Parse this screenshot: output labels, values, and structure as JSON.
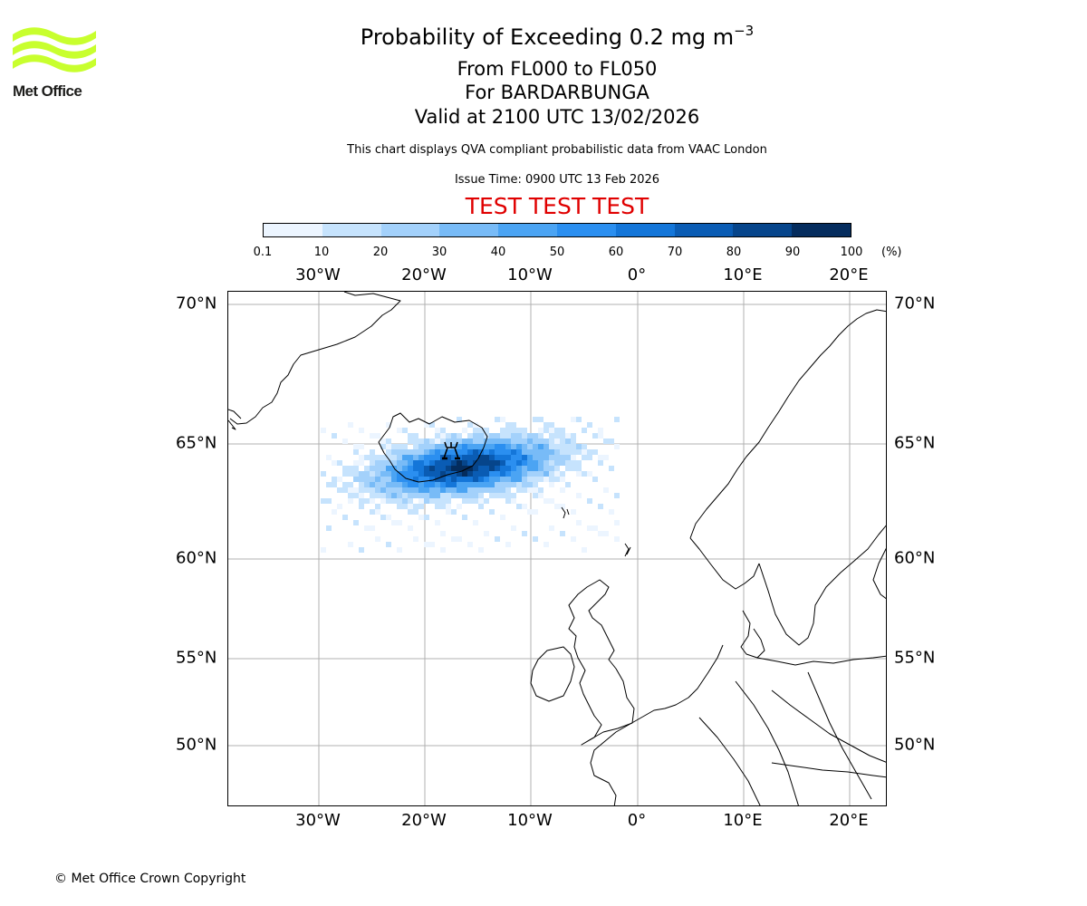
{
  "logo": {
    "text": "Met Office",
    "accent_color": "#c8ff2e"
  },
  "title": {
    "main": "Probability of Exceeding 0.2 mg m",
    "main_sup": "−3",
    "levels": "From FL000 to FL050",
    "volcano": "For BARDARBUNGA",
    "valid": "Valid at 2100 UTC 13/02/2026"
  },
  "description": "This chart displays QVA compliant probabilistic data from VAAC London",
  "issue_time": "Issue Time: 0900 UTC 13 Feb 2026",
  "test_banner": "TEST TEST TEST",
  "colorbar": {
    "ticks": [
      "0.1",
      "10",
      "20",
      "30",
      "40",
      "50",
      "60",
      "70",
      "80",
      "90",
      "100"
    ],
    "unit": "(%)",
    "colors": [
      "#ecf5ff",
      "#c6e3fd",
      "#a3d1fb",
      "#78bbf7",
      "#4ba4f3",
      "#2b8ff0",
      "#1476d9",
      "#0a5cb4",
      "#06458b",
      "#042c5d"
    ]
  },
  "axes": {
    "lon_ticks": [
      "30°W",
      "20°W",
      "10°W",
      "0°",
      "10°E",
      "20°E"
    ],
    "lat_ticks": [
      "70°N",
      "65°N",
      "60°N",
      "55°N",
      "50°N"
    ]
  },
  "map": {
    "volcano_symbol": "volcano-icon",
    "grid_color": "#b0b0b0",
    "coast_color": "#000000"
  },
  "copyright": "© Met Office Crown Copyright"
}
